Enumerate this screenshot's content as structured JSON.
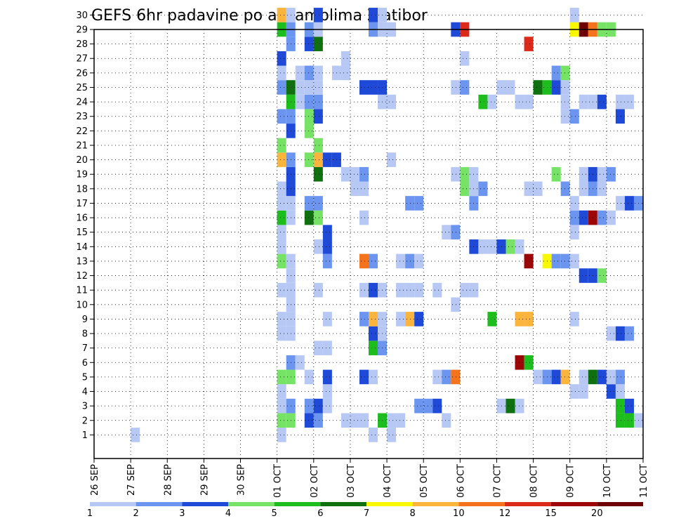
{
  "chart_data": {
    "type": "heatmap",
    "title": "GEFS 6hr padavine po ansamblima Zlatibor",
    "xlabel": "",
    "ylabel": "",
    "x_tick_labels": [
      "26 SEP",
      "27 SEP",
      "28 SEP",
      "29 SEP",
      "30 SEP",
      "01 OCT",
      "02 OCT",
      "03 OCT",
      "04 OCT",
      "05 OCT",
      "06 OCT",
      "07 OCT",
      "08 OCT",
      "09 OCT",
      "10 OCT",
      "11 OCT"
    ],
    "y_tick_labels": [
      "1",
      "2",
      "3",
      "4",
      "5",
      "6",
      "7",
      "8",
      "9",
      "10",
      "11",
      "12",
      "13",
      "14",
      "15",
      "16",
      "17",
      "18",
      "19",
      "20",
      "21",
      "22",
      "23",
      "24",
      "25",
      "26",
      "27",
      "28",
      "29",
      "30"
    ],
    "x_range_steps": [
      0,
      60
    ],
    "y_range_members": [
      0,
      30
    ],
    "grid": true,
    "legend_placement": "bottom",
    "legend": {
      "colors": [
        "#b7c8f5",
        "#6b95ef",
        "#1f4ad8",
        "#77e366",
        "#1ebd1e",
        "#0e700e",
        "#f8f800",
        "#fbb43c",
        "#f3741c",
        "#dc2a1a",
        "#9c0606",
        "#6e0202"
      ],
      "labels": [
        "1",
        "2",
        "3",
        "4",
        "5",
        "6",
        "7",
        "8",
        "10",
        "12",
        "15",
        "20"
      ]
    },
    "cells": [
      [
        0,
        20,
        1
      ],
      [
        0,
        4,
        1
      ],
      [
        0,
        30,
        1
      ],
      [
        0,
        32,
        1
      ],
      [
        1,
        20,
        4
      ],
      [
        1,
        21,
        4
      ],
      [
        1,
        23,
        3
      ],
      [
        1,
        24,
        2
      ],
      [
        1,
        27,
        1
      ],
      [
        1,
        28,
        1
      ],
      [
        1,
        29,
        1
      ],
      [
        1,
        31,
        5
      ],
      [
        1,
        32,
        1
      ],
      [
        1,
        33,
        1
      ],
      [
        1,
        38,
        1
      ],
      [
        1,
        57,
        5
      ],
      [
        1,
        58,
        5
      ],
      [
        1,
        59,
        1
      ],
      [
        2,
        20,
        1
      ],
      [
        2,
        21,
        2
      ],
      [
        2,
        23,
        2
      ],
      [
        2,
        24,
        3
      ],
      [
        2,
        25,
        1
      ],
      [
        2,
        35,
        2
      ],
      [
        2,
        36,
        2
      ],
      [
        2,
        37,
        3
      ],
      [
        2,
        44,
        1
      ],
      [
        2,
        45,
        6
      ],
      [
        2,
        46,
        1
      ],
      [
        2,
        57,
        5
      ],
      [
        2,
        58,
        3
      ],
      [
        3,
        20,
        1
      ],
      [
        3,
        25,
        1
      ],
      [
        3,
        25,
        1
      ],
      [
        3,
        52,
        1
      ],
      [
        3,
        53,
        1
      ],
      [
        3,
        56,
        3
      ],
      [
        3,
        57,
        1
      ],
      [
        4,
        20,
        4
      ],
      [
        4,
        21,
        4
      ],
      [
        4,
        23,
        1
      ],
      [
        4,
        25,
        3
      ],
      [
        4,
        29,
        3
      ],
      [
        4,
        30,
        1
      ],
      [
        4,
        37,
        1
      ],
      [
        4,
        38,
        2
      ],
      [
        4,
        39,
        9
      ],
      [
        4,
        48,
        1
      ],
      [
        4,
        49,
        2
      ],
      [
        4,
        50,
        3
      ],
      [
        4,
        51,
        8
      ],
      [
        4,
        53,
        1
      ],
      [
        4,
        54,
        6
      ],
      [
        4,
        55,
        3
      ],
      [
        4,
        56,
        1
      ],
      [
        4,
        57,
        2
      ],
      [
        5,
        21,
        2
      ],
      [
        5,
        22,
        1
      ],
      [
        5,
        46,
        11
      ],
      [
        5,
        47,
        5
      ],
      [
        6,
        24,
        1
      ],
      [
        6,
        25,
        1
      ],
      [
        6,
        30,
        5
      ],
      [
        6,
        31,
        2
      ],
      [
        7,
        20,
        1
      ],
      [
        7,
        21,
        1
      ],
      [
        7,
        30,
        3
      ],
      [
        7,
        31,
        1
      ],
      [
        7,
        56,
        1
      ],
      [
        7,
        57,
        3
      ],
      [
        7,
        58,
        2
      ],
      [
        8,
        20,
        1
      ],
      [
        8,
        21,
        1
      ],
      [
        8,
        25,
        1
      ],
      [
        8,
        29,
        2
      ],
      [
        8,
        30,
        8
      ],
      [
        8,
        31,
        1
      ],
      [
        8,
        33,
        1
      ],
      [
        8,
        34,
        8
      ],
      [
        8,
        35,
        3
      ],
      [
        8,
        43,
        5
      ],
      [
        8,
        46,
        8
      ],
      [
        8,
        47,
        8
      ],
      [
        8,
        52,
        1
      ],
      [
        9,
        21,
        1
      ],
      [
        9,
        39,
        1
      ],
      [
        10,
        20,
        1
      ],
      [
        10,
        21,
        1
      ],
      [
        10,
        24,
        1
      ],
      [
        10,
        29,
        1
      ],
      [
        10,
        30,
        3
      ],
      [
        10,
        31,
        1
      ],
      [
        10,
        33,
        1
      ],
      [
        10,
        34,
        1
      ],
      [
        10,
        35,
        1
      ],
      [
        10,
        37,
        1
      ],
      [
        10,
        40,
        1
      ],
      [
        10,
        41,
        1
      ],
      [
        11,
        21,
        1
      ],
      [
        11,
        53,
        3
      ],
      [
        11,
        54,
        3
      ],
      [
        11,
        55,
        4
      ],
      [
        12,
        20,
        4
      ],
      [
        12,
        21,
        1
      ],
      [
        12,
        25,
        2
      ],
      [
        12,
        29,
        9
      ],
      [
        12,
        30,
        2
      ],
      [
        12,
        33,
        1
      ],
      [
        12,
        34,
        2
      ],
      [
        12,
        35,
        1
      ],
      [
        12,
        47,
        11
      ],
      [
        12,
        49,
        7
      ],
      [
        12,
        50,
        2
      ],
      [
        12,
        51,
        2
      ],
      [
        12,
        52,
        1
      ],
      [
        13,
        20,
        1
      ],
      [
        13,
        24,
        1
      ],
      [
        13,
        25,
        3
      ],
      [
        13,
        41,
        3
      ],
      [
        13,
        42,
        1
      ],
      [
        13,
        43,
        1
      ],
      [
        13,
        44,
        3
      ],
      [
        13,
        45,
        4
      ],
      [
        13,
        46,
        1
      ],
      [
        14,
        20,
        1
      ],
      [
        14,
        25,
        3
      ],
      [
        14,
        38,
        1
      ],
      [
        14,
        39,
        2
      ],
      [
        14,
        52,
        1
      ],
      [
        15,
        20,
        5
      ],
      [
        15,
        21,
        1
      ],
      [
        15,
        23,
        6
      ],
      [
        15,
        24,
        4
      ],
      [
        15,
        29,
        1
      ],
      [
        15,
        52,
        2
      ],
      [
        15,
        53,
        3
      ],
      [
        15,
        54,
        11
      ],
      [
        15,
        55,
        2
      ],
      [
        15,
        56,
        1
      ],
      [
        16,
        20,
        1
      ],
      [
        16,
        21,
        1
      ],
      [
        16,
        23,
        2
      ],
      [
        16,
        24,
        2
      ],
      [
        16,
        34,
        2
      ],
      [
        16,
        35,
        2
      ],
      [
        16,
        41,
        2
      ],
      [
        16,
        52,
        1
      ],
      [
        16,
        57,
        1
      ],
      [
        16,
        58,
        3
      ],
      [
        16,
        59,
        2
      ],
      [
        17,
        20,
        1
      ],
      [
        17,
        21,
        3
      ],
      [
        17,
        28,
        1
      ],
      [
        17,
        29,
        1
      ],
      [
        17,
        40,
        4
      ],
      [
        17,
        41,
        1
      ],
      [
        17,
        42,
        2
      ],
      [
        17,
        47,
        1
      ],
      [
        17,
        48,
        1
      ],
      [
        17,
        51,
        2
      ],
      [
        17,
        53,
        1
      ],
      [
        17,
        54,
        2
      ],
      [
        17,
        55,
        1
      ],
      [
        18,
        21,
        3
      ],
      [
        18,
        24,
        6
      ],
      [
        18,
        28,
        1
      ],
      [
        18,
        29,
        2
      ],
      [
        18,
        27,
        1
      ],
      [
        18,
        39,
        1
      ],
      [
        18,
        40,
        4
      ],
      [
        18,
        41,
        1
      ],
      [
        18,
        50,
        4
      ],
      [
        18,
        53,
        1
      ],
      [
        18,
        54,
        3
      ],
      [
        18,
        55,
        1
      ],
      [
        18,
        56,
        2
      ],
      [
        19,
        20,
        8
      ],
      [
        19,
        21,
        2
      ],
      [
        19,
        23,
        4
      ],
      [
        19,
        24,
        8
      ],
      [
        19,
        25,
        3
      ],
      [
        19,
        26,
        3
      ],
      [
        19,
        32,
        1
      ],
      [
        20,
        20,
        4
      ],
      [
        20,
        24,
        4
      ],
      [
        21,
        21,
        3
      ],
      [
        21,
        23,
        4
      ],
      [
        22,
        20,
        2
      ],
      [
        22,
        21,
        2
      ],
      [
        22,
        23,
        4
      ],
      [
        22,
        24,
        3
      ],
      [
        22,
        51,
        1
      ],
      [
        22,
        52,
        2
      ],
      [
        22,
        57,
        3
      ],
      [
        23,
        21,
        5
      ],
      [
        23,
        22,
        1
      ],
      [
        23,
        23,
        2
      ],
      [
        23,
        24,
        2
      ],
      [
        23,
        31,
        1
      ],
      [
        23,
        32,
        1
      ],
      [
        23,
        42,
        5
      ],
      [
        23,
        43,
        1
      ],
      [
        23,
        46,
        1
      ],
      [
        23,
        47,
        1
      ],
      [
        23,
        51,
        1
      ],
      [
        23,
        53,
        1
      ],
      [
        23,
        54,
        1
      ],
      [
        23,
        55,
        3
      ],
      [
        23,
        57,
        1
      ],
      [
        23,
        58,
        1
      ],
      [
        24,
        20,
        2
      ],
      [
        24,
        21,
        6
      ],
      [
        24,
        22,
        1
      ],
      [
        24,
        23,
        1
      ],
      [
        24,
        24,
        1
      ],
      [
        24,
        29,
        3
      ],
      [
        24,
        30,
        3
      ],
      [
        24,
        31,
        3
      ],
      [
        24,
        39,
        1
      ],
      [
        24,
        40,
        2
      ],
      [
        24,
        44,
        1
      ],
      [
        24,
        45,
        1
      ],
      [
        24,
        48,
        6
      ],
      [
        24,
        49,
        5
      ],
      [
        24,
        50,
        3
      ],
      [
        24,
        51,
        1
      ],
      [
        25,
        20,
        1
      ],
      [
        25,
        22,
        1
      ],
      [
        25,
        23,
        2
      ],
      [
        25,
        24,
        1
      ],
      [
        25,
        26,
        1
      ],
      [
        25,
        27,
        1
      ],
      [
        25,
        50,
        2
      ],
      [
        25,
        51,
        4
      ],
      [
        26,
        20,
        3
      ],
      [
        26,
        27,
        1
      ],
      [
        26,
        40,
        1
      ],
      [
        27,
        21,
        2
      ],
      [
        27,
        23,
        3
      ],
      [
        27,
        24,
        6
      ],
      [
        27,
        47,
        10
      ],
      [
        28,
        20,
        5
      ],
      [
        28,
        21,
        2
      ],
      [
        28,
        23,
        2
      ],
      [
        28,
        24,
        1
      ],
      [
        28,
        30,
        2
      ],
      [
        28,
        31,
        1
      ],
      [
        28,
        32,
        1
      ],
      [
        28,
        39,
        3
      ],
      [
        28,
        40,
        10
      ],
      [
        28,
        52,
        7
      ],
      [
        28,
        53,
        12
      ],
      [
        28,
        54,
        9
      ],
      [
        28,
        55,
        4
      ],
      [
        28,
        56,
        4
      ],
      [
        29,
        20,
        8
      ],
      [
        29,
        21,
        1
      ],
      [
        29,
        24,
        3
      ],
      [
        29,
        30,
        3
      ],
      [
        29,
        31,
        1
      ],
      [
        29,
        52,
        1
      ]
    ]
  }
}
